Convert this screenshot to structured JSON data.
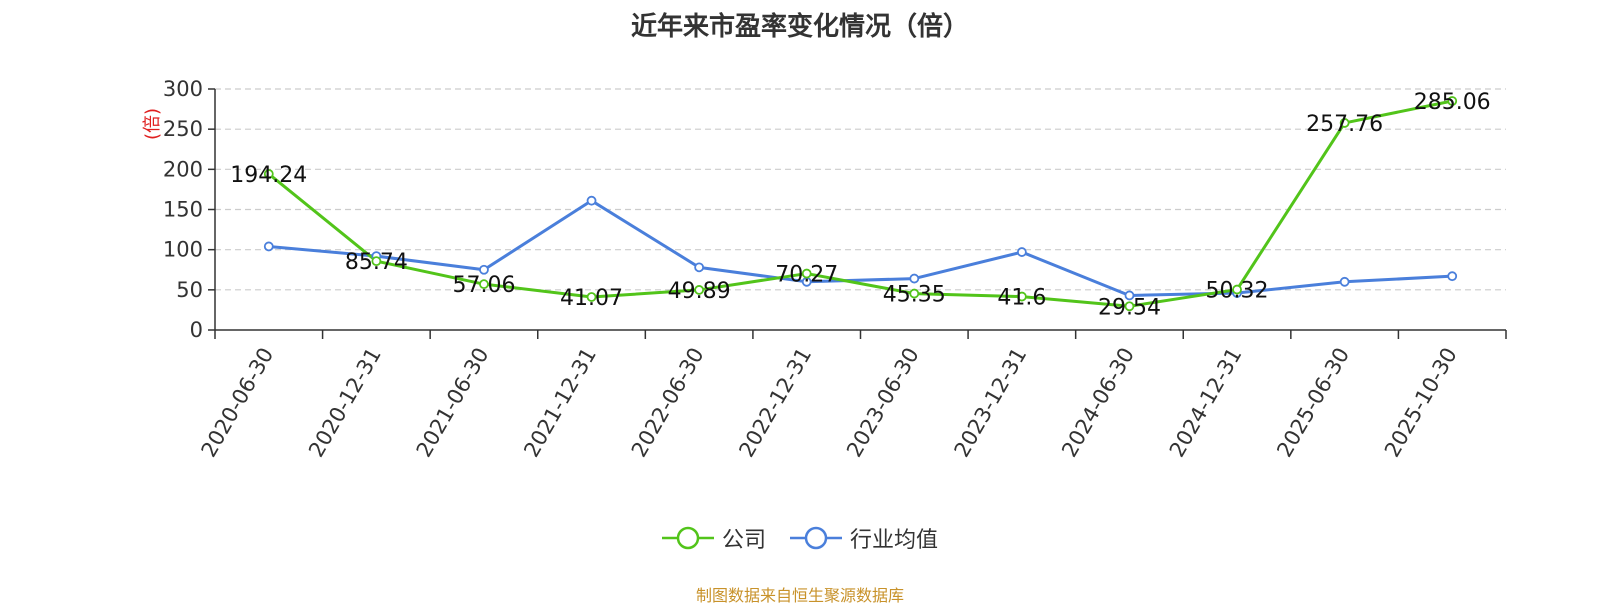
{
  "title": "近年来市盈率变化情况（倍）",
  "source": "制图数据来自恒生聚源数据库",
  "chart_data": {
    "type": "line",
    "title": "近年来市盈率变化情况（倍）",
    "ylabel": "(倍)",
    "xlabel": "",
    "ylim": [
      0,
      300
    ],
    "yticks": [
      0,
      50,
      100,
      150,
      200,
      250,
      300
    ],
    "grid": "horizontal-dashed",
    "legend_position": "bottom",
    "categories": [
      "2020-06-30",
      "2020-12-31",
      "2021-06-30",
      "2021-12-31",
      "2022-06-30",
      "2022-12-31",
      "2023-06-30",
      "2023-12-31",
      "2024-06-30",
      "2024-12-31",
      "2025-06-30",
      "2025-10-30"
    ],
    "series": [
      {
        "name": "公司",
        "color": "#52c41a",
        "values": [
          194.24,
          85.74,
          57.06,
          41.07,
          49.89,
          70.27,
          45.35,
          41.6,
          29.54,
          50.32,
          257.76,
          285.06
        ],
        "labels": [
          "194.24",
          "85.74",
          "57.06",
          "41.07",
          "49.89",
          "70.27",
          "45.35",
          "41.6",
          "29.54",
          "50.32",
          "257.76",
          "285.06"
        ]
      },
      {
        "name": "行业均值",
        "color": "#4a7fdb",
        "values": [
          104,
          92,
          75,
          161,
          78,
          60,
          64,
          97,
          43,
          46,
          60,
          67
        ]
      }
    ]
  }
}
